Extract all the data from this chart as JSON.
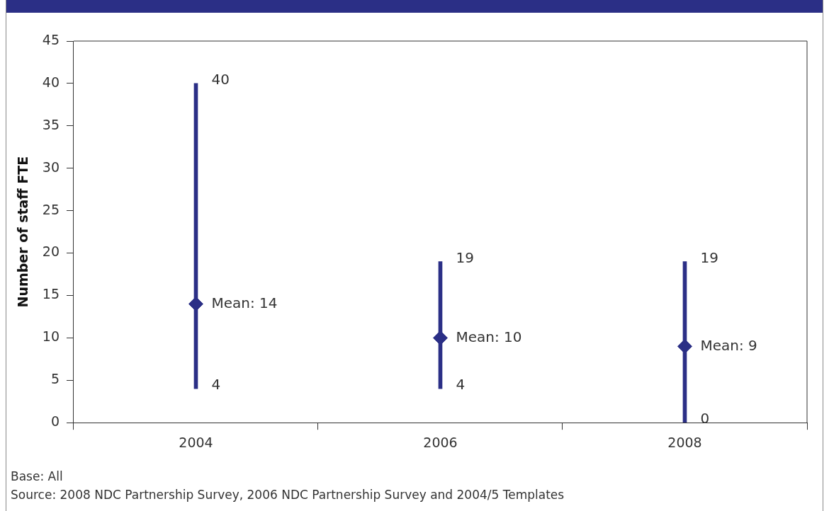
{
  "chart_data": {
    "type": "bar",
    "ylabel": "Number of staff FTE",
    "categories": [
      "2004",
      "2006",
      "2008"
    ],
    "series": [
      {
        "color": "#2b2f86",
        "base": [
          4,
          4,
          0
        ],
        "values": [
          36,
          15,
          19
        ]
      },
      {
        "type": "scatter",
        "color": "#2b2f86",
        "values": [
          14,
          10,
          9
        ],
        "value_labels": [
          "Mean: 14",
          "Mean: 10",
          "Mean: 9"
        ],
        "marker": "diamond"
      }
    ],
    "ylim": [
      0,
      45
    ],
    "yticks": [
      0,
      5,
      10,
      15,
      20,
      25,
      30,
      35,
      40,
      45
    ],
    "grid": false,
    "legend": false,
    "annotations": [
      {
        "text": "40",
        "x": "2004",
        "y": 40
      },
      {
        "text": "4",
        "x": "2004",
        "y": 4
      },
      {
        "text": "19",
        "x": "2006",
        "y": 19
      },
      {
        "text": "4",
        "x": "2006",
        "y": 4
      },
      {
        "text": "19",
        "x": "2008",
        "y": 19
      },
      {
        "text": "0",
        "x": "2008",
        "y": 0
      },
      "Base: All",
      "Source: 2008 NDC Partnership Survey, 2006 NDC Partnership Survey and 2004/5 Templates"
    ]
  }
}
